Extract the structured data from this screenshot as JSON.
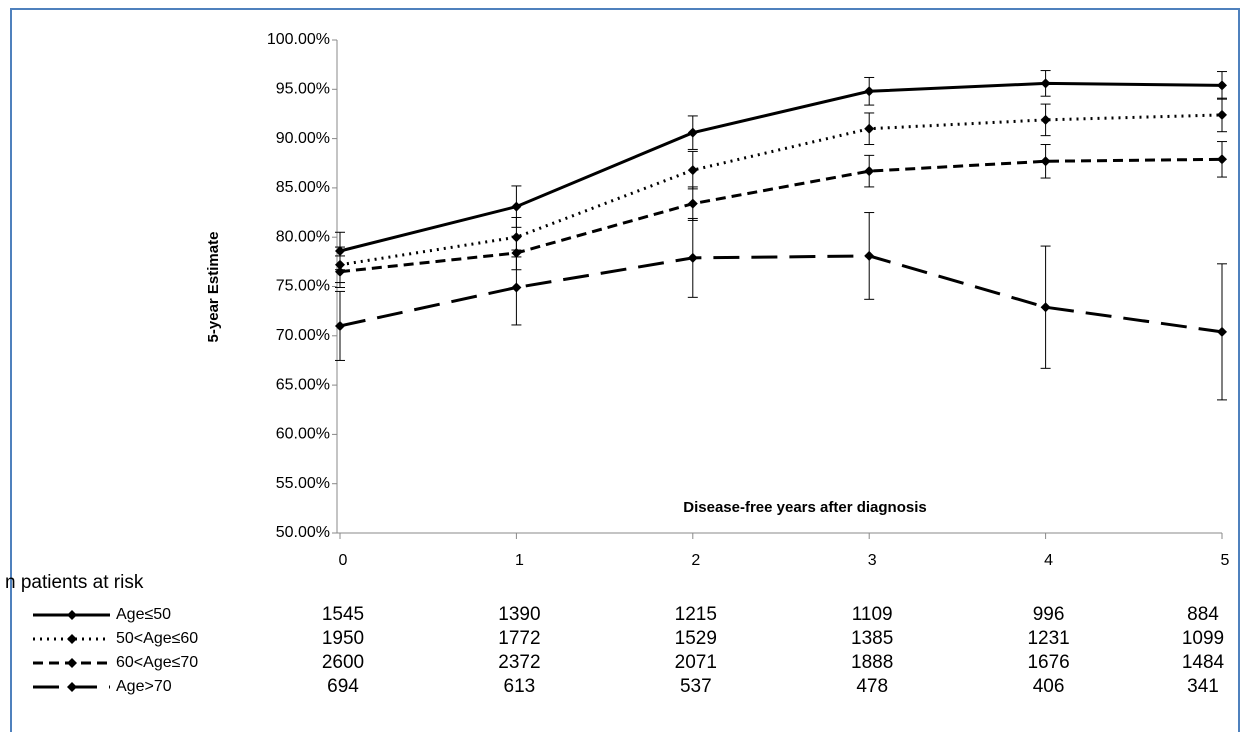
{
  "chart_data": {
    "type": "line",
    "y_label": "5-year Estimate",
    "x_label": "Disease-free years after diagnosis",
    "risk_table_title": "n patients at risk",
    "x": [
      0,
      1,
      2,
      3,
      4,
      5
    ],
    "xlim": [
      0,
      5
    ],
    "xticks": [
      0,
      1,
      2,
      3,
      4,
      5
    ],
    "ylim": [
      50,
      100
    ],
    "yticks": [
      {
        "value": 50,
        "label": "50.00%"
      },
      {
        "value": 55,
        "label": "55.00%"
      },
      {
        "value": 60,
        "label": "60.00%"
      },
      {
        "value": 65,
        "label": "65.00%"
      },
      {
        "value": 70,
        "label": "70.00%"
      },
      {
        "value": 75,
        "label": "75.00%"
      },
      {
        "value": 80,
        "label": "80.00%"
      },
      {
        "value": 85,
        "label": "85.00%"
      },
      {
        "value": 90,
        "label": "90.00%"
      },
      {
        "value": 95,
        "label": "95.00%"
      },
      {
        "value": 100,
        "label": "100.00%"
      }
    ],
    "grid": false,
    "series": [
      {
        "name": "Age≤50",
        "color": "#000000",
        "line_style": "solid",
        "values": [
          78.6,
          83.1,
          90.6,
          94.8,
          95.6,
          95.4
        ],
        "errors": [
          1.9,
          2.1,
          1.7,
          1.4,
          1.3,
          1.4
        ],
        "at_risk": [
          1545,
          1390,
          1215,
          1109,
          996,
          884
        ]
      },
      {
        "name": "50<Age≤60",
        "color": "#000000",
        "line_style": "dotted",
        "values": [
          77.2,
          80.0,
          86.8,
          91.0,
          91.9,
          92.4
        ],
        "errors": [
          1.8,
          2.0,
          1.9,
          1.6,
          1.6,
          1.7
        ],
        "at_risk": [
          1950,
          1772,
          1529,
          1385,
          1231,
          1099
        ]
      },
      {
        "name": "60<Age≤70",
        "color": "#000000",
        "line_style": "dashed",
        "values": [
          76.5,
          78.4,
          83.4,
          86.7,
          87.7,
          87.9
        ],
        "errors": [
          1.6,
          1.7,
          1.7,
          1.6,
          1.7,
          1.8
        ],
        "at_risk": [
          2600,
          2372,
          2071,
          1888,
          1676,
          1484
        ]
      },
      {
        "name": "Age>70",
        "color": "#000000",
        "line_style": "long-dashed",
        "values": [
          71.0,
          74.9,
          77.9,
          78.1,
          72.9,
          70.4
        ],
        "errors": [
          3.5,
          3.8,
          4.0,
          4.4,
          6.2,
          6.9
        ],
        "at_risk": [
          694,
          613,
          537,
          478,
          406,
          341
        ]
      }
    ]
  }
}
